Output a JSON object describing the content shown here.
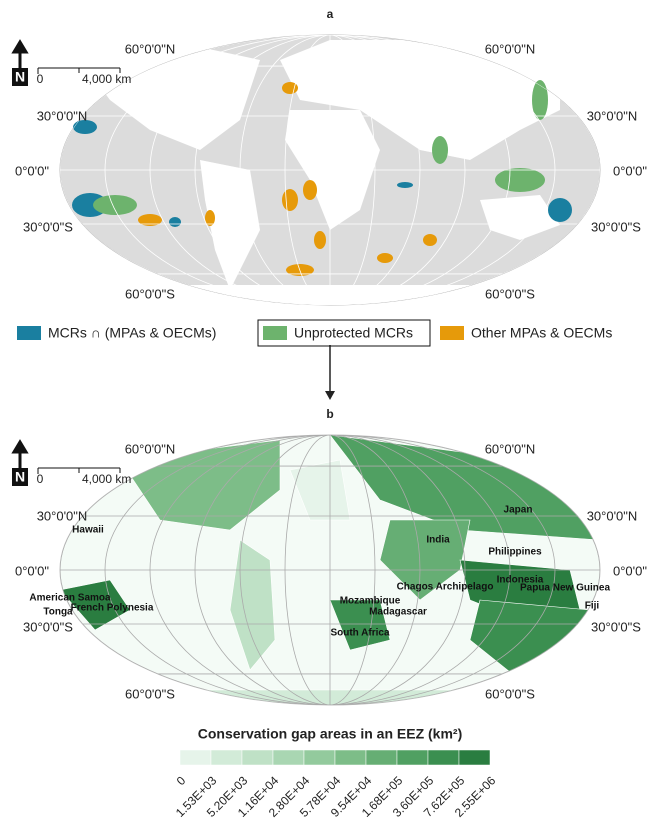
{
  "panel_a": {
    "label": "a",
    "north": "N",
    "scale": {
      "zero": "0",
      "distance": "4,000 km"
    },
    "lat_labels": [
      "60°0'0\"N",
      "60°0'0\"N",
      "30°0'0\"N",
      "30°0'0\"N",
      "0°0'0\"",
      "0°0'0\"",
      "30°0'0\"S",
      "30°0'0\"S",
      "60°0'0\"S",
      "60°0'0\"S"
    ],
    "legend": [
      {
        "name": "MCRs ∩ (MPAs & OECMs)",
        "color": "#1a7fa0"
      },
      {
        "name": "Unprotected MCRs",
        "color": "#6db36d"
      },
      {
        "name": "Other MPAs & OECMs",
        "color": "#e69a0a"
      }
    ]
  },
  "panel_b": {
    "label": "b",
    "north": "N",
    "scale": {
      "zero": "0",
      "distance": "4,000 km"
    },
    "lat_labels": [
      "60°0'0\"N",
      "60°0'0\"N",
      "30°0'0\"N",
      "30°0'0\"N",
      "0°0'0\"",
      "0°0'0\"",
      "30°0'0\"S",
      "30°0'0\"S",
      "60°0'0\"S",
      "60°0'0\"S"
    ],
    "places": [
      "Hawaii",
      "Japan",
      "India",
      "Philippines",
      "American Samoa",
      "Tonga",
      "French Polynesia",
      "Chagos Archipelago",
      "Indonesia",
      "Papua New Guinea",
      "Mozambique",
      "Madagascar",
      "Fiji",
      "South Africa"
    ],
    "colorbar": {
      "title": "Conservation gap areas in an EEZ (km²)",
      "ticks": [
        "0",
        "1.53E+03",
        "5.20E+03",
        "1.16E+04",
        "2.80E+04",
        "5.78E+04",
        "9.54E+04",
        "1.68E+05",
        "3.60E+05",
        "7.62E+05",
        "2.55E+06"
      ],
      "colors": [
        "#e6f4ea",
        "#d2ebd8",
        "#bfe1c6",
        "#a9d6b2",
        "#93ca9d",
        "#7dbd88",
        "#66ae74",
        "#50a062",
        "#3b8f50",
        "#2a7d40"
      ]
    }
  }
}
